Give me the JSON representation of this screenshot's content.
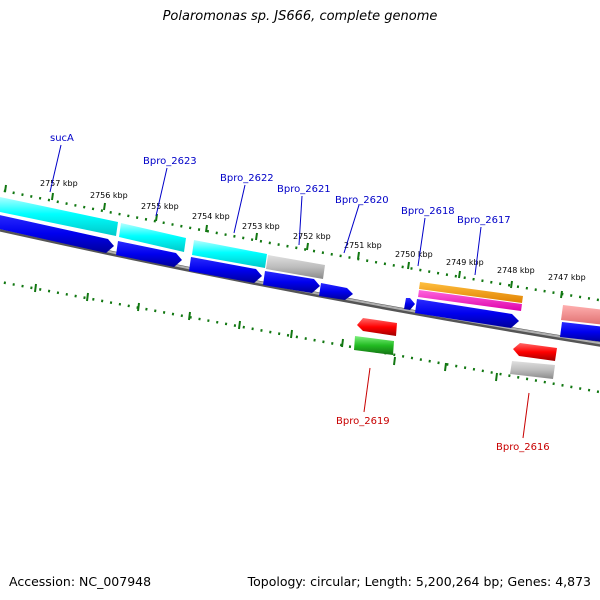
{
  "title": "Polaromonas sp. JS666, complete genome",
  "footer": {
    "accession": "Accession: NC_007948",
    "topology": "Topology: circular; Length: 5,200,264 bp; Genes: 4,873"
  },
  "colors": {
    "forward_label": "#0000c8",
    "reverse_label": "#c80000",
    "ticks": "#117711",
    "backbone": "#7a7a7a"
  },
  "scale_labels": [
    {
      "id": "2757",
      "text": "2757 kbp"
    },
    {
      "id": "2756",
      "text": "2756 kbp"
    },
    {
      "id": "2755",
      "text": "2755 kbp"
    },
    {
      "id": "2754",
      "text": "2754 kbp"
    },
    {
      "id": "2753",
      "text": "2753 kbp"
    },
    {
      "id": "2752",
      "text": "2752 kbp"
    },
    {
      "id": "2751",
      "text": "2751 kbp"
    },
    {
      "id": "2750",
      "text": "2750 kbp"
    },
    {
      "id": "2749",
      "text": "2749 kbp"
    },
    {
      "id": "2748",
      "text": "2748 kbp"
    },
    {
      "id": "2747",
      "text": "2747 kbp"
    }
  ],
  "gene_labels": [
    {
      "id": "sucA",
      "text": "sucA",
      "strand": "forward"
    },
    {
      "id": "bpro2623",
      "text": "Bpro_2623",
      "strand": "forward"
    },
    {
      "id": "bpro2622",
      "text": "Bpro_2622",
      "strand": "forward"
    },
    {
      "id": "bpro2621",
      "text": "Bpro_2621",
      "strand": "forward"
    },
    {
      "id": "bpro2620",
      "text": "Bpro_2620",
      "strand": "forward"
    },
    {
      "id": "bpro2618",
      "text": "Bpro_2618",
      "strand": "forward"
    },
    {
      "id": "bpro2617",
      "text": "Bpro_2617",
      "strand": "forward"
    },
    {
      "id": "bpro2619",
      "text": "Bpro_2619",
      "strand": "reverse"
    },
    {
      "id": "bpro2616",
      "text": "Bpro_2616",
      "strand": "reverse"
    }
  ]
}
